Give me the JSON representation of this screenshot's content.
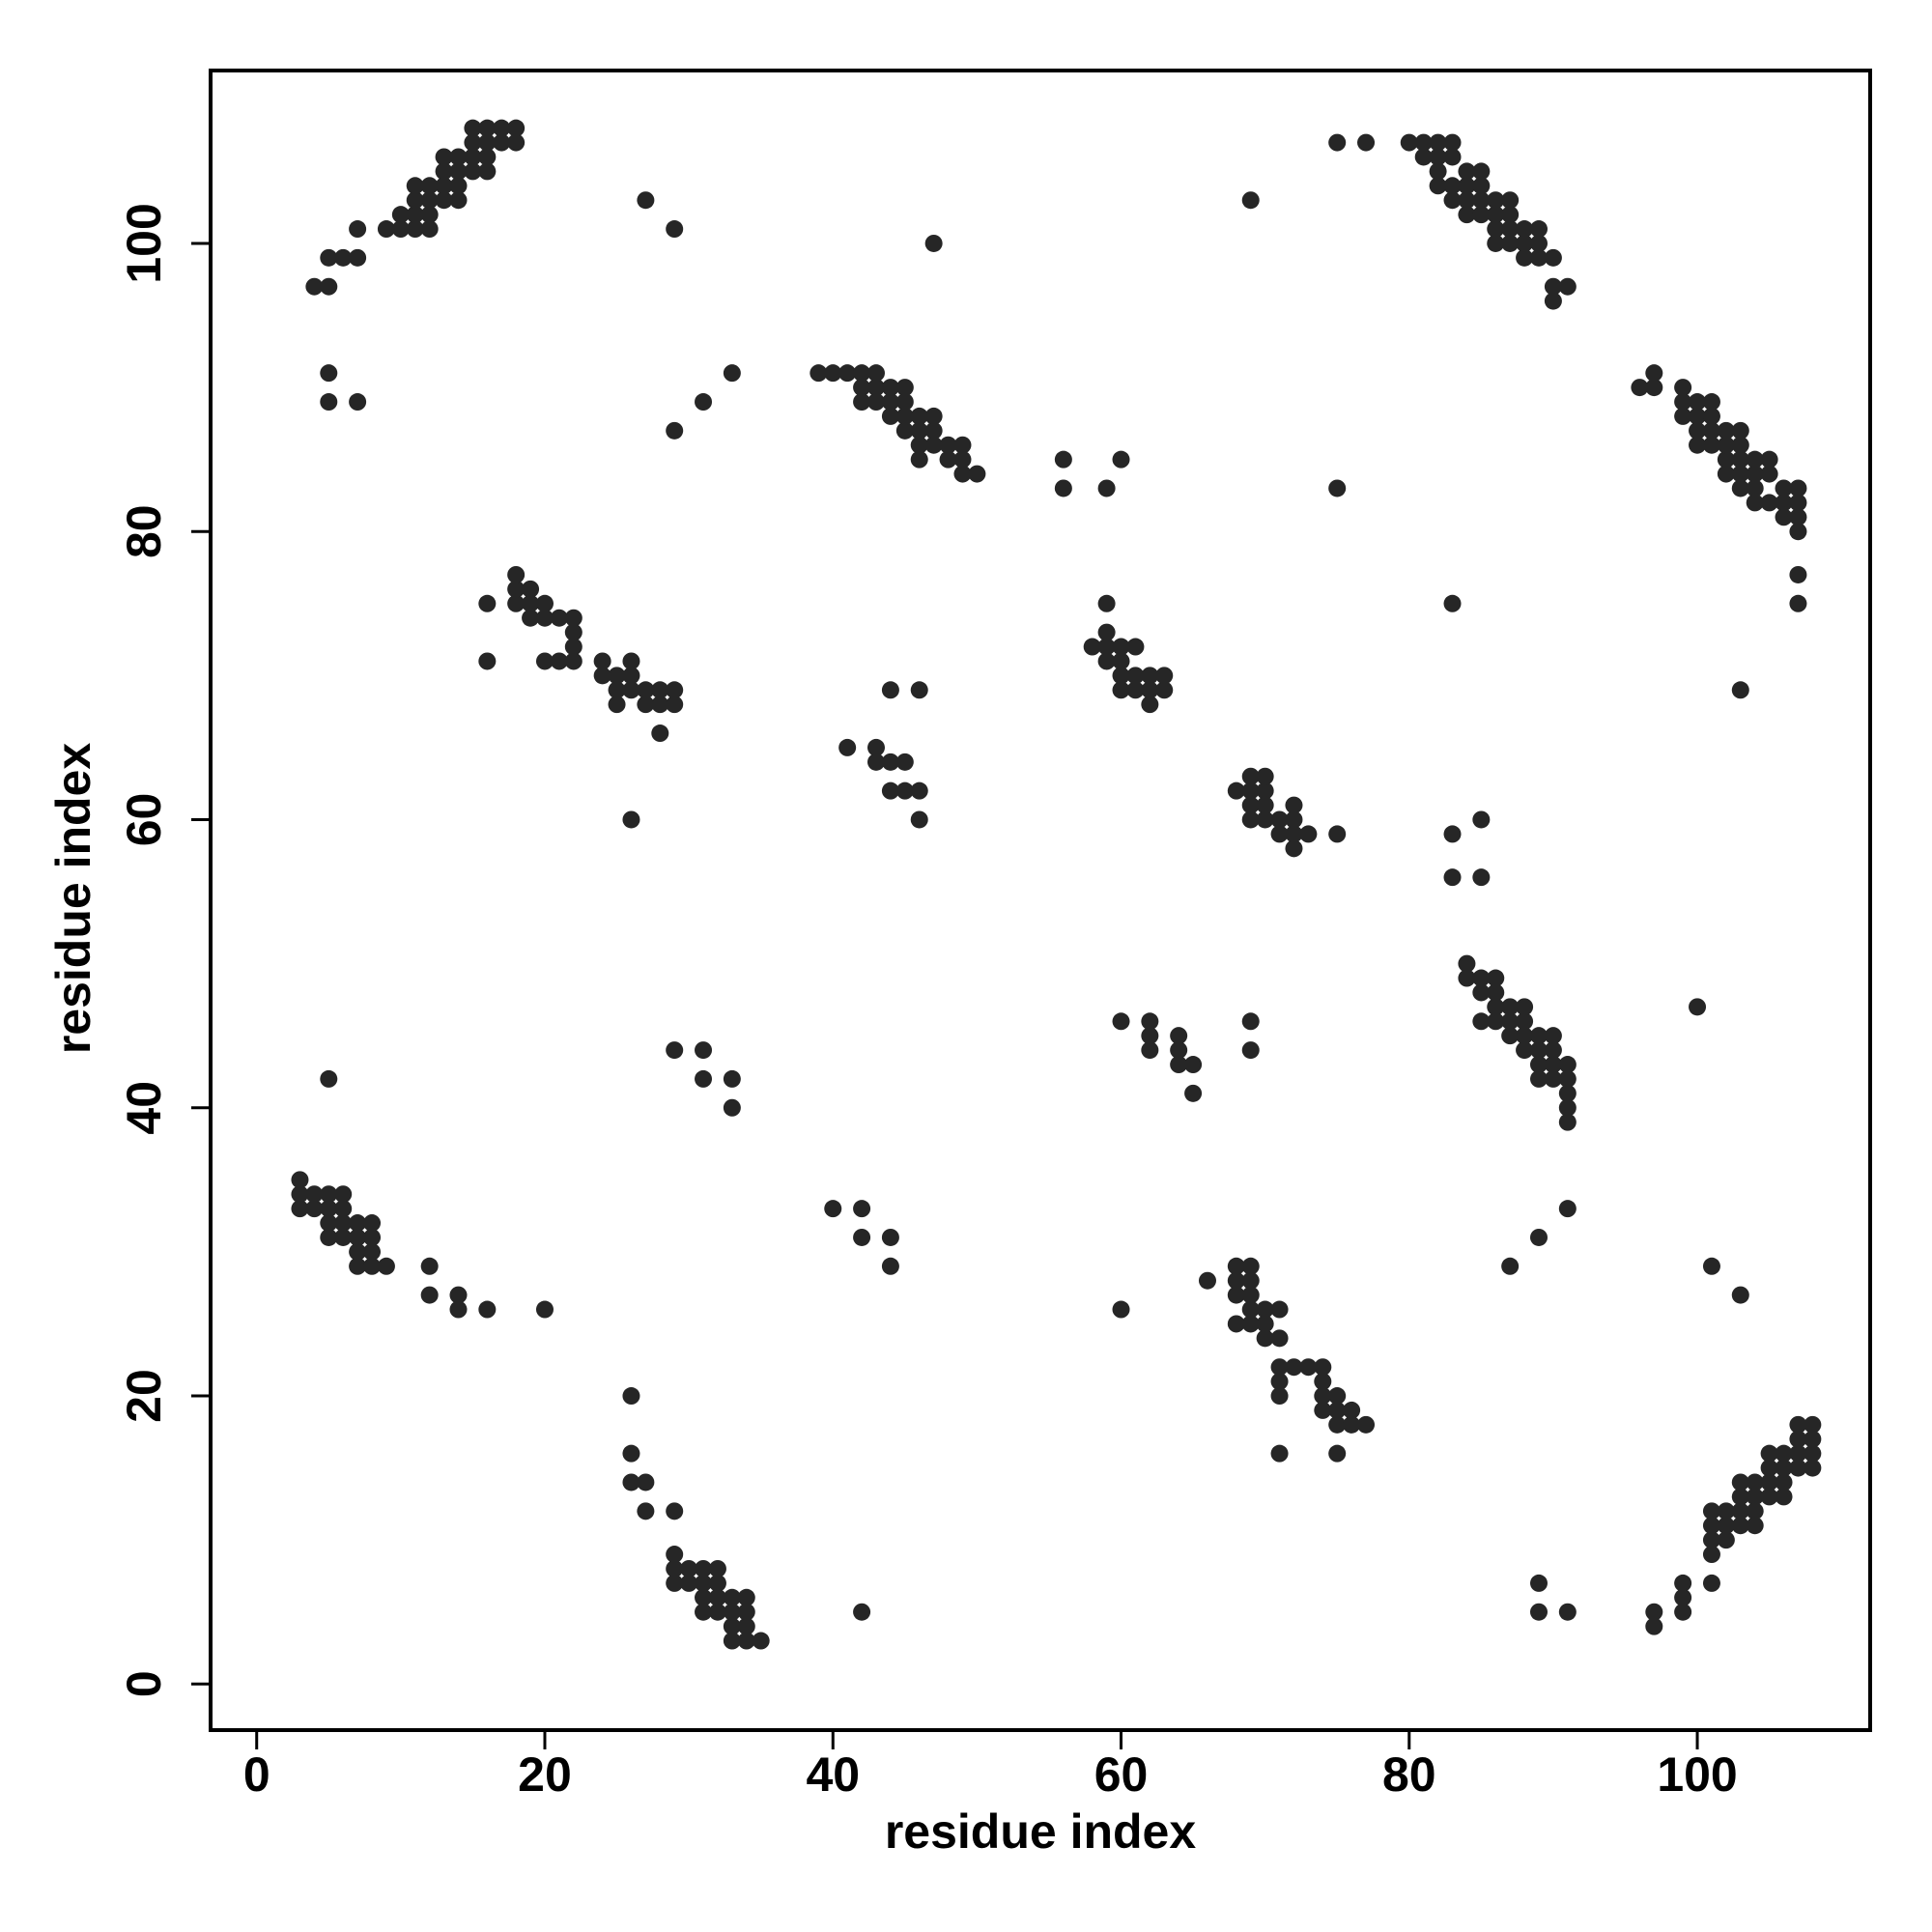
{
  "chart_data": {
    "type": "scatter",
    "xlabel": "residue index",
    "ylabel": "residue index",
    "xlim": [
      -3.2,
      112
    ],
    "ylim": [
      -3.2,
      112
    ],
    "xticks": [
      0,
      20,
      40,
      60,
      80,
      100
    ],
    "yticks": [
      0,
      20,
      40,
      60,
      80,
      100
    ],
    "color": "#262626",
    "x": [
      4,
      5,
      5,
      6,
      7,
      7,
      9,
      10,
      10,
      11,
      11,
      11,
      11,
      12,
      12,
      12,
      12,
      13,
      13,
      13,
      13,
      14,
      14,
      14,
      14,
      15,
      15,
      15,
      15,
      16,
      16,
      16,
      16,
      17,
      17,
      18,
      18,
      5,
      5,
      7,
      3,
      3,
      3,
      4,
      4,
      5,
      5,
      5,
      5,
      6,
      6,
      6,
      6,
      7,
      7,
      7,
      7,
      8,
      8,
      8,
      8,
      9,
      12,
      12,
      14,
      14,
      16,
      20,
      5,
      16,
      16,
      18,
      18,
      18,
      19,
      19,
      19,
      20,
      20,
      20,
      21,
      21,
      22,
      22,
      22,
      22,
      24,
      24,
      25,
      25,
      25,
      26,
      26,
      26,
      27,
      27,
      28,
      28,
      28,
      29,
      29,
      26,
      27,
      29,
      29,
      31,
      33,
      29,
      31,
      31,
      33,
      33,
      39,
      40,
      41,
      42,
      42,
      42,
      43,
      43,
      43,
      44,
      44,
      44,
      45,
      45,
      45,
      45,
      46,
      46,
      46,
      46,
      47,
      47,
      47,
      48,
      48,
      49,
      49,
      49,
      50,
      41,
      43,
      43,
      44,
      44,
      44,
      45,
      45,
      46,
      46,
      46,
      47,
      56,
      56,
      59,
      60,
      58,
      59,
      59,
      59,
      59,
      60,
      60,
      60,
      60,
      61,
      61,
      61,
      62,
      62,
      62,
      63,
      63,
      69,
      75,
      77,
      75,
      80,
      81,
      81,
      82,
      82,
      82,
      82,
      83,
      83,
      83,
      83,
      84,
      84,
      84,
      84,
      85,
      85,
      85,
      85,
      86,
      86,
      86,
      86,
      87,
      87,
      87,
      87,
      88,
      88,
      88,
      89,
      89,
      89,
      90,
      90,
      90,
      91,
      97,
      97,
      99,
      99,
      99,
      101,
      101,
      101,
      102,
      101,
      102,
      103,
      104,
      101,
      102,
      103,
      104,
      103,
      104,
      105,
      106,
      103,
      104,
      105,
      106,
      105,
      106,
      107,
      108,
      105,
      106,
      107,
      108,
      107,
      108,
      107,
      108,
      91,
      89,
      89,
      33,
      34,
      35,
      33,
      34,
      31,
      32,
      33,
      34,
      31,
      32,
      33,
      34,
      29,
      30,
      31,
      32,
      29,
      30,
      31,
      32,
      29,
      29,
      27,
      27,
      26,
      26,
      26,
      42,
      75,
      71,
      75,
      76,
      77,
      74,
      75,
      76,
      71,
      74,
      75,
      71,
      74,
      71,
      72,
      73,
      74,
      70,
      71,
      68,
      69,
      70,
      69,
      70,
      71,
      68,
      69,
      66,
      68,
      69,
      68,
      69,
      60,
      103,
      101,
      87,
      89,
      91,
      44,
      44,
      42,
      42,
      40,
      91,
      91,
      91,
      89,
      90,
      91,
      89,
      90,
      91,
      88,
      89,
      90,
      87,
      88,
      89,
      90,
      85,
      86,
      87,
      88,
      86,
      87,
      88,
      85,
      86,
      84,
      85,
      86,
      84,
      65,
      64,
      65,
      64,
      62,
      69,
      62,
      64,
      60,
      62,
      69,
      100,
      85,
      83,
      83,
      85,
      72,
      71,
      72,
      73,
      75,
      69,
      70,
      71,
      72,
      69,
      70,
      72,
      68,
      69,
      70,
      69,
      70,
      103,
      107,
      107,
      83,
      107,
      106,
      107,
      104,
      105,
      106,
      107,
      103,
      104,
      106,
      107,
      102,
      103,
      104,
      105,
      102,
      103,
      104,
      105,
      100,
      101,
      102,
      103,
      100,
      101,
      102,
      103,
      99,
      100,
      101,
      99,
      100,
      101,
      96,
      97,
      99,
      97
    ],
    "values": [
      97,
      97,
      99,
      99,
      99,
      101,
      101,
      101,
      102,
      101,
      102,
      103,
      104,
      101,
      102,
      103,
      104,
      103,
      104,
      105,
      106,
      103,
      104,
      105,
      106,
      105,
      106,
      107,
      108,
      105,
      106,
      107,
      108,
      107,
      108,
      107,
      108,
      91,
      89,
      89,
      33,
      34,
      35,
      33,
      34,
      31,
      32,
      33,
      34,
      31,
      32,
      33,
      34,
      29,
      30,
      31,
      32,
      29,
      30,
      31,
      32,
      29,
      29,
      27,
      27,
      26,
      26,
      26,
      42,
      75,
      71,
      75,
      76,
      77,
      74,
      75,
      76,
      71,
      74,
      75,
      71,
      74,
      71,
      72,
      73,
      74,
      70,
      71,
      68,
      69,
      70,
      69,
      70,
      71,
      68,
      69,
      66,
      68,
      69,
      68,
      69,
      60,
      103,
      101,
      87,
      89,
      91,
      44,
      44,
      42,
      42,
      40,
      91,
      91,
      91,
      89,
      90,
      91,
      89,
      90,
      91,
      88,
      89,
      90,
      87,
      88,
      89,
      90,
      85,
      86,
      87,
      88,
      86,
      87,
      88,
      85,
      86,
      84,
      85,
      86,
      84,
      65,
      64,
      65,
      64,
      62,
      69,
      62,
      64,
      60,
      62,
      69,
      100,
      85,
      83,
      83,
      85,
      72,
      71,
      72,
      73,
      75,
      69,
      70,
      71,
      72,
      69,
      70,
      72,
      68,
      69,
      70,
      69,
      70,
      103,
      107,
      107,
      83,
      107,
      106,
      107,
      104,
      105,
      106,
      107,
      103,
      104,
      106,
      107,
      102,
      103,
      104,
      105,
      102,
      103,
      104,
      105,
      100,
      101,
      102,
      103,
      100,
      101,
      102,
      103,
      99,
      100,
      101,
      99,
      100,
      101,
      96,
      97,
      99,
      97,
      4,
      5,
      5,
      6,
      7,
      7,
      9,
      10,
      10,
      11,
      11,
      11,
      11,
      12,
      12,
      12,
      12,
      13,
      13,
      13,
      13,
      14,
      14,
      14,
      14,
      15,
      15,
      15,
      15,
      16,
      16,
      16,
      16,
      17,
      17,
      18,
      18,
      5,
      5,
      7,
      3,
      3,
      3,
      4,
      4,
      5,
      5,
      5,
      5,
      6,
      6,
      6,
      6,
      7,
      7,
      7,
      7,
      8,
      8,
      8,
      8,
      9,
      12,
      12,
      14,
      14,
      16,
      20,
      5,
      16,
      16,
      18,
      18,
      18,
      19,
      19,
      19,
      20,
      20,
      20,
      21,
      21,
      22,
      22,
      22,
      22,
      24,
      24,
      25,
      25,
      25,
      26,
      26,
      26,
      27,
      27,
      28,
      28,
      28,
      29,
      29,
      26,
      27,
      29,
      29,
      31,
      33,
      29,
      31,
      31,
      33,
      33,
      39,
      40,
      41,
      42,
      42,
      42,
      43,
      43,
      43,
      44,
      44,
      44,
      45,
      45,
      45,
      45,
      46,
      46,
      46,
      46,
      47,
      47,
      47,
      48,
      48,
      49,
      49,
      49,
      50,
      41,
      43,
      43,
      44,
      44,
      44,
      45,
      45,
      46,
      46,
      46,
      47,
      56,
      56,
      59,
      60,
      58,
      59,
      59,
      59,
      59,
      60,
      60,
      60,
      60,
      61,
      61,
      61,
      62,
      62,
      62,
      63,
      63,
      69,
      75,
      77,
      75,
      80,
      81,
      81,
      82,
      82,
      82,
      82,
      83,
      83,
      83,
      83,
      84,
      84,
      84,
      84,
      85,
      85,
      85,
      85,
      86,
      86,
      86,
      86,
      87,
      87,
      87,
      87,
      88,
      88,
      88,
      89,
      89,
      89,
      90,
      90,
      90,
      91
    ]
  }
}
